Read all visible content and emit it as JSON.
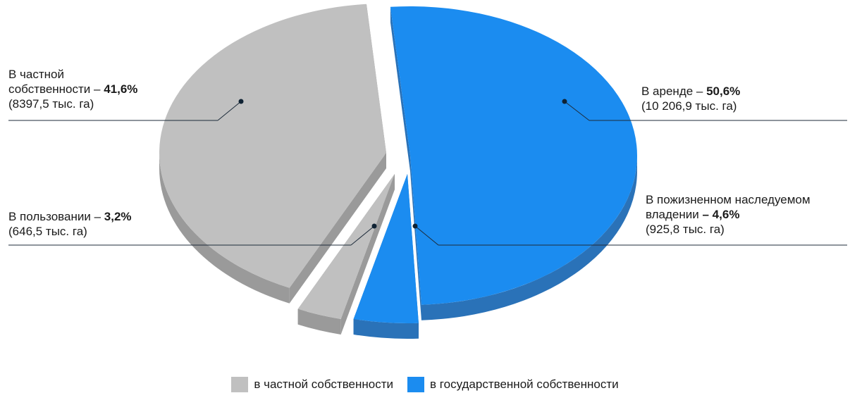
{
  "chart_data": {
    "type": "pie",
    "slices": [
      {
        "name": "private",
        "label_text": "В частной",
        "label_text2": "собственности – ",
        "pct_label": "41,6%",
        "area_label": "(8397,5 тыс. га)",
        "value": 41.6,
        "group": "private",
        "color": "#c0c0c0"
      },
      {
        "name": "use",
        "label_text": "В пользовании – ",
        "pct_label": "3,2%",
        "area_label": "(646,5 тыс. га)",
        "value": 3.2,
        "group": "private",
        "color": "#c0c0c0"
      },
      {
        "name": "lease",
        "label_text": "В аренде – ",
        "pct_label": "50,6%",
        "area_label": "(10 206,9  тыс. га)",
        "value": 50.6,
        "group": "state",
        "color": "#1b8cf0"
      },
      {
        "name": "inherit",
        "label_text": "В пожизненном наследуемом",
        "label_text2": "владении",
        "pct_label": " – 4,6%",
        "area_label": "(925,8 тыс. га)",
        "value": 4.6,
        "group": "state",
        "color": "#1b8cf0"
      }
    ],
    "legend": [
      {
        "label": "в частной собственности",
        "color": "#c0c0c0"
      },
      {
        "label": "в государственной собственности",
        "color": "#1b8cf0"
      }
    ],
    "legend_position": "bottom"
  }
}
